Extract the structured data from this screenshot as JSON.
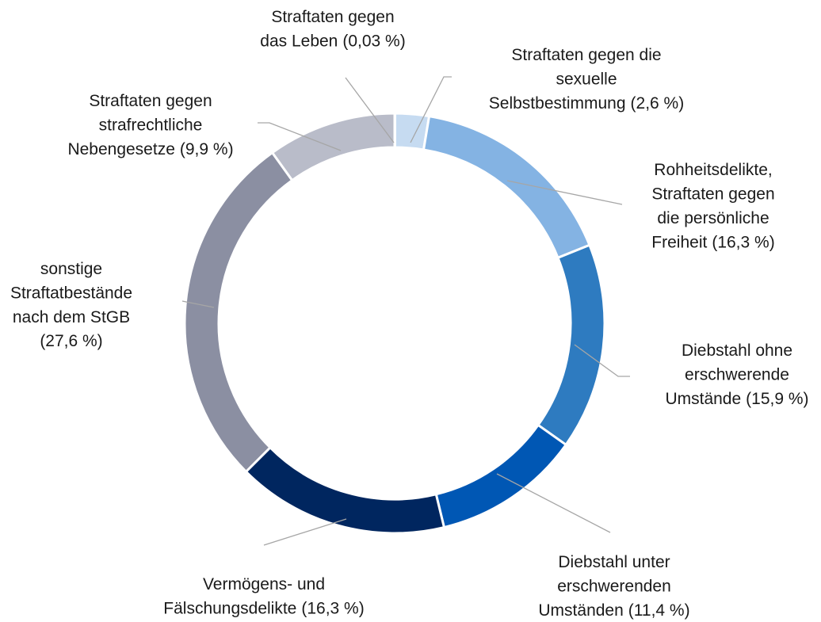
{
  "chart_data": {
    "type": "donut",
    "categories": [
      [
        "Straftaten gegen",
        "das Leben"
      ],
      [
        "Straftaten gegen die",
        "sexuelle",
        "Selbstbestimmung"
      ],
      [
        "Rohheitsdelikte,",
        "Straftaten gegen",
        "die persönliche",
        "Freiheit"
      ],
      [
        "Diebstahl ohne",
        "erschwerende",
        "Umstände"
      ],
      [
        "Diebstahl unter",
        "erschwerenden",
        "Umständen"
      ],
      [
        "Vermögens- und",
        "Fälschungsdelikte"
      ],
      [
        "sonstige",
        "Straftatbestände",
        "nach dem StGB"
      ],
      [
        "Straftaten gegen",
        "strafrechtliche",
        "Nebengesetze"
      ]
    ],
    "values": [
      0.03,
      2.6,
      16.3,
      15.9,
      11.4,
      16.3,
      27.6,
      9.9
    ],
    "value_labels": [
      "(0,03 %)",
      "(2,6 %)",
      "(16,3 %)",
      "(15,9 %)",
      "(11,4 %)",
      "(16,3 %)",
      "(27,6 %)",
      "(9,9 %)"
    ],
    "colors": [
      "#dfe8f4",
      "#c6dbf1",
      "#84b3e3",
      "#2e7bc0",
      "#0057b4",
      "#00265f",
      "#8b8fa2",
      "#b9bcc9"
    ]
  }
}
